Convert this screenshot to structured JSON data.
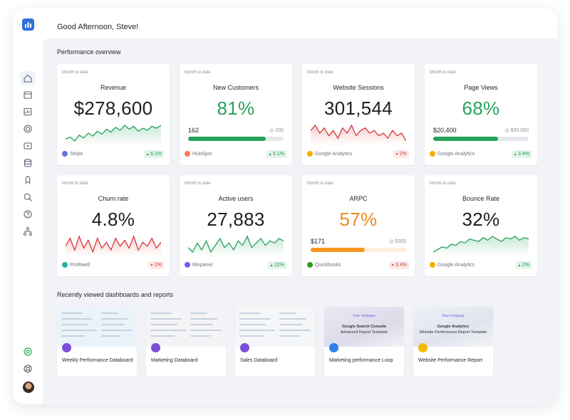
{
  "header": {
    "greeting": "Good Afternoon, Steve!"
  },
  "sections": {
    "overview_title": "Performance overview",
    "recent_title": "Recently viewed dashboards and reports"
  },
  "sidebar": {
    "items": [
      {
        "name": "home-icon",
        "active": true
      },
      {
        "name": "calendar-icon"
      },
      {
        "name": "chart-icon"
      },
      {
        "name": "target-icon"
      },
      {
        "name": "play-icon"
      },
      {
        "name": "database-icon"
      },
      {
        "name": "rocket-icon"
      },
      {
        "name": "search-icon"
      },
      {
        "name": "help-icon"
      },
      {
        "name": "hierarchy-icon"
      }
    ],
    "bottom": [
      "support-icon",
      "lifebuoy-icon",
      "avatar"
    ]
  },
  "cards": [
    {
      "period": "Month to date",
      "title": "Revenue",
      "value": "$278,600",
      "color": "#1b1f24",
      "trend": "up",
      "source": "Stripe",
      "source_color": "#6772e5",
      "change": "6.1%",
      "change_dir": "up",
      "spark": [
        14,
        16,
        12,
        18,
        15,
        20,
        17,
        22,
        19,
        24,
        21,
        26,
        23,
        28,
        24,
        27,
        22,
        25,
        23,
        27,
        25,
        28
      ]
    },
    {
      "period": "Month to date",
      "title": "New Customers",
      "value": "81%",
      "color": "#27a35b",
      "goal_value": "162",
      "goal_target": "200",
      "progress": 0.81,
      "bar_color": "#27a35b",
      "track_color": "#e5e8ec",
      "source": "HubSpot",
      "source_color": "#ff7a59",
      "change": "5.1%",
      "change_dir": "up"
    },
    {
      "period": "Month to date",
      "title": "Website Sessions",
      "value": "301,544",
      "color": "#1b1f24",
      "trend": "down",
      "source": "Google Analytics",
      "source_color": "#f9ab00",
      "change": "2%",
      "change_dir": "down",
      "spark": [
        22,
        24,
        21,
        23,
        20,
        22,
        19,
        23,
        21,
        24,
        20,
        22,
        23,
        21,
        22,
        20,
        21,
        19,
        22,
        20,
        21,
        18
      ]
    },
    {
      "period": "Month to date",
      "title": "Page Views",
      "value": "68%",
      "color": "#27a35b",
      "goal_value": "$20,400",
      "goal_target": "$30,000",
      "progress": 0.68,
      "bar_color": "#27a35b",
      "track_color": "#e5e8ec",
      "source": "Google Analytics",
      "source_color": "#f9ab00",
      "change": "3.4%",
      "change_dir": "up"
    },
    {
      "period": "Month to date",
      "title": "Churn rate",
      "value": "4.8%",
      "color": "#1b1f24",
      "trend": "down",
      "source": "Profitwell",
      "source_color": "#2ab0a0",
      "change": "2%",
      "change_dir": "down",
      "spark": [
        20,
        24,
        18,
        25,
        19,
        23,
        17,
        24,
        19,
        22,
        18,
        24,
        20,
        23,
        19,
        25,
        18,
        22,
        20,
        24,
        19,
        22
      ]
    },
    {
      "period": "Month to date",
      "title": "Active users",
      "value": "27,883",
      "color": "#1b1f24",
      "trend": "up",
      "source": "Mixpanel",
      "source_color": "#7856ff",
      "change": "12%",
      "change_dir": "up",
      "spark": [
        20,
        18,
        22,
        19,
        23,
        18,
        21,
        24,
        20,
        22,
        19,
        23,
        21,
        25,
        20,
        22,
        24,
        21,
        23,
        22,
        24,
        23
      ]
    },
    {
      "period": "Month to date",
      "title": "ARPC",
      "value": "57%",
      "color": "#f08a1c",
      "goal_value": "$171",
      "goal_target": "$300",
      "progress": 0.57,
      "bar_color": "#f5961f",
      "track_color": "#fdeede",
      "source": "Quickbooks",
      "source_color": "#2ca01c",
      "change": "3.4%",
      "change_dir": "down"
    },
    {
      "period": "Month to date",
      "title": "Bounce Rate",
      "value": "32%",
      "color": "#1b1f24",
      "trend": "up",
      "source": "Google Analytics",
      "source_color": "#f9ab00",
      "change": "2%",
      "change_dir": "up",
      "spark": [
        14,
        16,
        18,
        17,
        20,
        19,
        22,
        21,
        24,
        23,
        22,
        25,
        23,
        26,
        24,
        22,
        25,
        24,
        26,
        23,
        25,
        24
      ]
    }
  ],
  "recent": [
    {
      "label": "Weekly Performance Databoard",
      "style": "a",
      "icon_color": "#7c4ddb"
    },
    {
      "label": "Marketing Databoard",
      "style": "b",
      "icon_color": "#7c4ddb"
    },
    {
      "label": "Sales Databoard",
      "style": "c",
      "icon_color": "#7c4ddb"
    },
    {
      "label": "Marketing performance Loop",
      "style": "d",
      "icon_color": "#2f80ed",
      "preview_brand": "Your company",
      "preview_title": "Google Search Console",
      "preview_sub": "Advanced Report Template"
    },
    {
      "label": "Website Performance Report",
      "style": "e",
      "icon_color": "#f5b800",
      "preview_brand": "Your company",
      "preview_title": "Google Analytics",
      "preview_sub": "Website Performance Report Template"
    }
  ],
  "colors": {
    "up": "#27a35b",
    "down": "#d33a3a",
    "accent": "#2f6fde"
  }
}
